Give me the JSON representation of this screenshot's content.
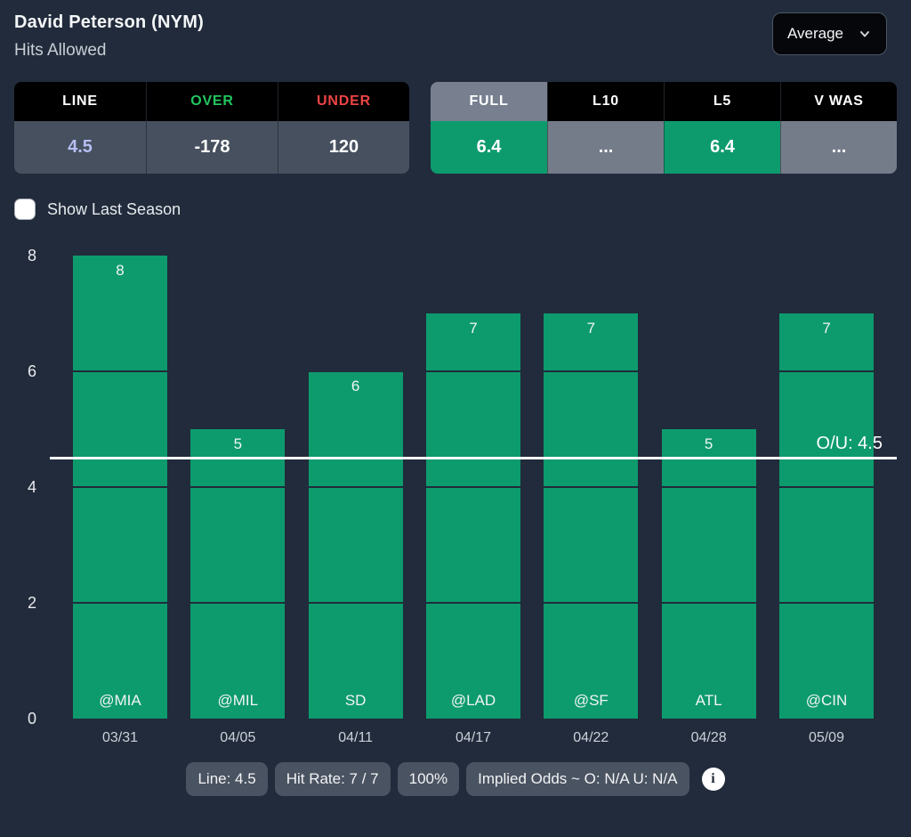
{
  "header": {
    "title": "David Peterson (NYM)",
    "subtitle": "Hits Allowed",
    "stat_dropdown": {
      "selected": "Average"
    }
  },
  "odds_table": {
    "columns": [
      {
        "key": "line",
        "label": "LINE",
        "value": "4.5",
        "label_color": "#ffffff",
        "value_color": "#b6bff2"
      },
      {
        "key": "over",
        "label": "OVER",
        "value": "-178",
        "label_color": "#22c55e",
        "value_color": "#ffffff"
      },
      {
        "key": "under",
        "label": "UNDER",
        "value": "120",
        "label_color": "#ef4444",
        "value_color": "#ffffff"
      }
    ]
  },
  "splits_table": {
    "tabs": [
      {
        "key": "full",
        "label": "FULL",
        "value": "6.4",
        "selected": true,
        "has_value": true
      },
      {
        "key": "l10",
        "label": "L10",
        "value": "...",
        "selected": false,
        "has_value": false
      },
      {
        "key": "l5",
        "label": "L5",
        "value": "6.4",
        "selected": false,
        "has_value": true
      },
      {
        "key": "v-was",
        "label": "V WAS",
        "value": "...",
        "selected": false,
        "has_value": false
      }
    ]
  },
  "show_last_season": {
    "label": "Show Last Season",
    "checked": false
  },
  "chart_data": {
    "type": "bar",
    "title": "Hits Allowed by game",
    "categories": [
      "03/31",
      "04/05",
      "04/11",
      "04/17",
      "04/22",
      "04/28",
      "05/09"
    ],
    "opponents": [
      "@MIA",
      "@MIL",
      "SD",
      "@LAD",
      "@SF",
      "ATL",
      "@CIN"
    ],
    "values": [
      8,
      5,
      6,
      7,
      7,
      5,
      7
    ],
    "line": 4.5,
    "line_label": "O/U: 4.5",
    "xlabel": "",
    "ylabel": "",
    "ylim": [
      0,
      8
    ],
    "yticks": [
      0,
      2,
      4,
      6,
      8
    ],
    "gridlines": [
      2,
      4,
      6
    ],
    "bar_color": "#0d9b6d",
    "legend": "none"
  },
  "footer": {
    "badges": [
      {
        "key": "line",
        "label": "Line: 4.5"
      },
      {
        "key": "hit-rate",
        "label": "Hit Rate: 7 / 7"
      },
      {
        "key": "hit-pct",
        "label": "100%"
      },
      {
        "key": "implied-odds",
        "label": "Implied Odds ~ O: N/A U: N/A"
      }
    ],
    "info_icon_glyph": "i"
  },
  "colors": {
    "background": "#212b3b",
    "bar_green": "#0d9b6d",
    "over_green": "#22c55e",
    "under_red": "#ef4444",
    "line_value": "#b6bff2",
    "tab_selected_bg": "#788090",
    "na_cell_bg": "#747b89",
    "value_row_bg": "#47505f",
    "badge_bg": "#4a5361",
    "ou_line": "#ffffff"
  }
}
